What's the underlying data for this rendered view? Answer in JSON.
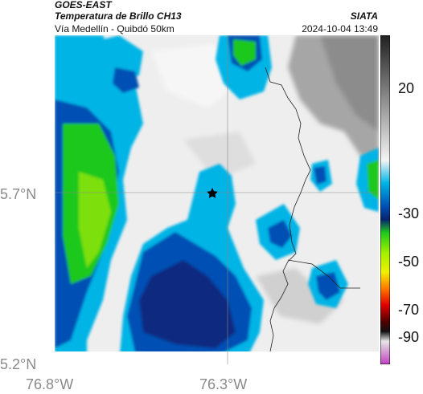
{
  "header": {
    "satellite": "GOES-EAST",
    "product": "Temperatura de Brillo CH13",
    "region": "Vía Medellín - Quibdó 50km",
    "agency": "SIATA",
    "timestamp": "2024-10-04 13:49"
  },
  "axes": {
    "lat_ticks": [
      "5.7°N",
      "5.2°N"
    ],
    "lon_ticks": [
      "76.8°W",
      "76.3°W"
    ]
  },
  "colorbar": {
    "labels": [
      "20",
      "-30",
      "-50",
      "-70",
      "-90"
    ],
    "colors": {
      "warm_dark": "#303030",
      "warm_light": "#f2f2f2",
      "cyan": "#00b4e6",
      "blue": "#0050b4",
      "navy": "#08246e",
      "green": "#1ec81e",
      "lime": "#a0f000",
      "yellow": "#f0f000",
      "orange": "#ff7800",
      "red": "#e00000",
      "dark_red": "#500000",
      "magenta": "#c040c0"
    }
  },
  "map": {
    "marker": "star",
    "features": [
      "cloud-top brightness temperature field",
      "coastline / border line",
      "lat-lon gridlines"
    ]
  }
}
